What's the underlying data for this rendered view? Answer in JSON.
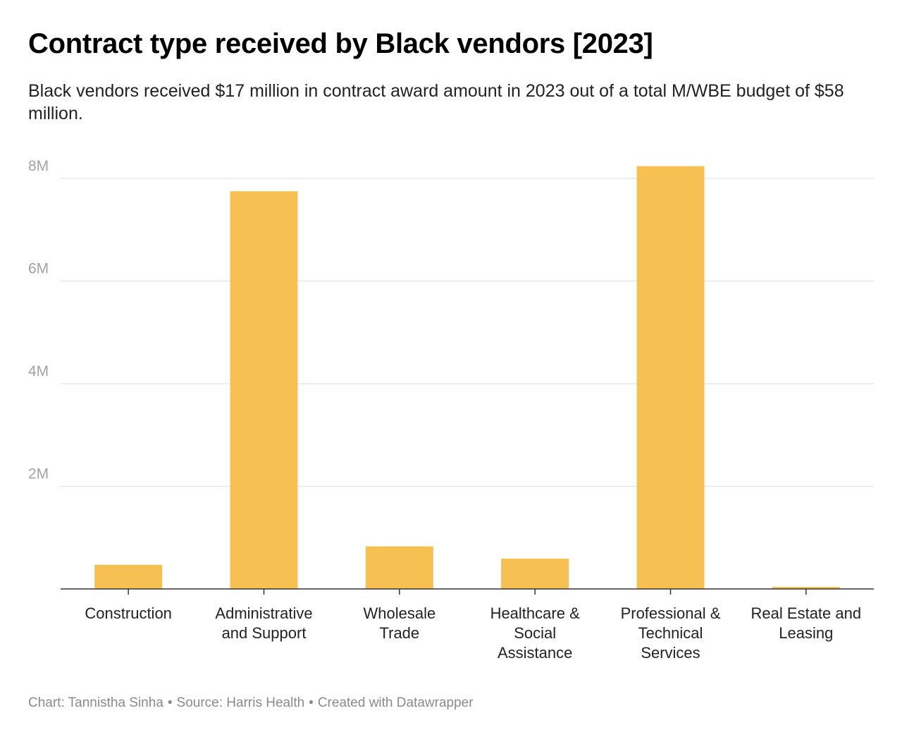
{
  "header": {
    "title": "Contract type received by Black vendors [2023]",
    "subtitle": "Black vendors received $17 million in contract award amount in 2023 out of a total M/WBE budget of $58 million."
  },
  "footer": {
    "chart_credit": "Chart: Tannistha Sinha",
    "source": "Source: Harris Health",
    "created_with": "Created with Datawrapper",
    "separator": "•"
  },
  "colors": {
    "bar": "#f7c052",
    "grid": "#e3e3e3",
    "axis": "#333333",
    "tick_label": "#a3a3a3"
  },
  "chart_data": {
    "type": "bar",
    "title": "Contract type received by Black vendors [2023]",
    "xlabel": "",
    "ylabel": "",
    "categories": [
      [
        "Construction"
      ],
      [
        "Administrative",
        "and Support"
      ],
      [
        "Wholesale",
        "Trade"
      ],
      [
        "Healthcare &",
        "Social",
        "Assistance"
      ],
      [
        "Professional &",
        "Technical",
        "Services"
      ],
      [
        "Real Estate and",
        "Leasing"
      ]
    ],
    "values": [
      470000,
      7750000,
      830000,
      590000,
      8240000,
      40000
    ],
    "ylim": [
      0,
      8000000
    ],
    "yticks": [
      {
        "value": 2000000,
        "label": "2M"
      },
      {
        "value": 4000000,
        "label": "4M"
      },
      {
        "value": 6000000,
        "label": "6M"
      },
      {
        "value": 8000000,
        "label": "8M"
      }
    ],
    "grid": true,
    "legend": "none"
  }
}
